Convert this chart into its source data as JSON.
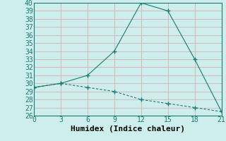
{
  "x": [
    0,
    3,
    6,
    9,
    12,
    15,
    18,
    21
  ],
  "y_solid": [
    29.5,
    30,
    31,
    34,
    40,
    39,
    33,
    26.5
  ],
  "y_dashed": [
    29.5,
    30,
    29.5,
    29,
    28,
    27.5,
    27,
    26.5
  ],
  "line_color": "#1a7a6e",
  "bg_color": "#cdeeed",
  "grid_color": "#d4b8b8",
  "xlabel": "Humidex (Indice chaleur)",
  "xlim": [
    0,
    21
  ],
  "ylim": [
    26,
    40
  ],
  "xticks": [
    0,
    3,
    6,
    9,
    12,
    15,
    18,
    21
  ],
  "yticks": [
    26,
    27,
    28,
    29,
    30,
    31,
    32,
    33,
    34,
    35,
    36,
    37,
    38,
    39,
    40
  ],
  "xlabel_fontsize": 8,
  "tick_fontsize": 7
}
